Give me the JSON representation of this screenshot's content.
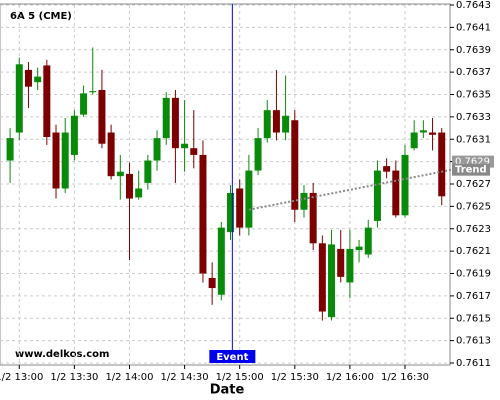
{
  "chart_data": {
    "type": "candlestick",
    "title": "6A 5 (CME)",
    "watermark": "www.delkos.com",
    "x_label": "Date",
    "xlim": [
      -1.1,
      47.9
    ],
    "xticks": [
      {
        "value": 1,
        "label": "1/2 13:00"
      },
      {
        "value": 7,
        "label": "1/2 13:30"
      },
      {
        "value": 13,
        "label": "1/2 14:00"
      },
      {
        "value": 19,
        "label": "1/2 14:30"
      },
      {
        "value": 25,
        "label": "1/2 15:00"
      },
      {
        "value": 31,
        "label": "1/2 15:30"
      },
      {
        "value": 37,
        "label": "1/2 16:00"
      },
      {
        "value": 43,
        "label": "1/2 16:30"
      }
    ],
    "ylim": [
      0.7611,
      0.7643
    ],
    "yticks": [
      0.7611,
      0.7613,
      0.7615,
      0.7617,
      0.7619,
      0.7621,
      0.7623,
      0.7625,
      0.7627,
      0.7629,
      0.7631,
      0.7633,
      0.7635,
      0.7637,
      0.7639,
      0.7641,
      0.7643
    ],
    "grid": true,
    "up_color": "#0a8a0a",
    "down_color": "#7d0000",
    "open": [
      0.76291,
      0.76316,
      0.76372,
      0.76361,
      0.76376,
      0.76316,
      0.76266,
      0.76296,
      0.76332,
      0.76352,
      0.76354,
      0.76316,
      0.76277,
      0.76279,
      0.76258,
      0.76271,
      0.76291,
      0.76311,
      0.76347,
      0.76302,
      0.76302,
      0.76296,
      0.76186,
      0.76171,
      0.76227,
      0.76266,
      0.76231,
      0.76282,
      0.76311,
      0.76336,
      0.76316,
      0.76327,
      0.76247,
      0.76262,
      0.76217,
      0.76151,
      0.76212,
      0.76182,
      0.76211,
      0.76207,
      0.76237,
      0.76286,
      0.76282,
      0.76242,
      0.76302,
      0.76316,
      0.76316,
      0.76316
    ],
    "high": [
      0.7632,
      0.76383,
      0.76379,
      0.76374,
      0.76381,
      0.76323,
      0.76329,
      0.76336,
      0.76358,
      0.76392,
      0.76372,
      0.76323,
      0.76296,
      0.76289,
      0.76282,
      0.76296,
      0.76318,
      0.76352,
      0.76354,
      0.76345,
      0.76336,
      0.76309,
      0.762,
      0.76236,
      0.76269,
      0.76274,
      0.76296,
      0.7632,
      0.76345,
      0.76372,
      0.76367,
      0.76336,
      0.76269,
      0.76271,
      0.76224,
      0.76229,
      0.76229,
      0.76229,
      0.7622,
      0.76238,
      0.76291,
      0.76293,
      0.76291,
      0.76305,
      0.76327,
      0.76327,
      0.76329,
      0.7632
    ],
    "low": [
      0.76271,
      0.76309,
      0.76338,
      0.76354,
      0.76305,
      0.76257,
      0.76262,
      0.76291,
      0.7633,
      0.7635,
      0.76302,
      0.76274,
      0.76256,
      0.76202,
      0.76256,
      0.76265,
      0.76282,
      0.76305,
      0.76271,
      0.76281,
      0.76284,
      0.76182,
      0.76162,
      0.76166,
      0.7622,
      0.76224,
      0.76224,
      0.76278,
      0.76307,
      0.76309,
      0.76309,
      0.76236,
      0.7624,
      0.76211,
      0.76148,
      0.76148,
      0.76182,
      0.76168,
      0.762,
      0.76204,
      0.76231,
      0.76275,
      0.7624,
      0.7624,
      0.763,
      0.76311,
      0.763,
      0.76251
    ],
    "close": [
      0.76311,
      0.76377,
      0.76357,
      0.76366,
      0.76312,
      0.76266,
      0.76316,
      0.76331,
      0.76351,
      0.76353,
      0.76306,
      0.76277,
      0.76281,
      0.76257,
      0.76266,
      0.76291,
      0.76311,
      0.76347,
      0.76302,
      0.76306,
      0.76296,
      0.7619,
      0.76177,
      0.76231,
      0.76262,
      0.76231,
      0.76282,
      0.76311,
      0.76336,
      0.76316,
      0.76331,
      0.76247,
      0.76262,
      0.76217,
      0.76156,
      0.76216,
      0.76187,
      0.76212,
      0.76214,
      0.76231,
      0.76282,
      0.76281,
      0.76242,
      0.76296,
      0.76316,
      0.76318,
      0.76314,
      0.76259
    ],
    "event": {
      "x": 24.2,
      "label": "Event",
      "color": "#0000ee"
    },
    "price_marker": 0.7629,
    "trend": {
      "x": [
        26,
        47
      ],
      "values": [
        0.76247,
        0.76281
      ],
      "label": "Trend"
    }
  }
}
